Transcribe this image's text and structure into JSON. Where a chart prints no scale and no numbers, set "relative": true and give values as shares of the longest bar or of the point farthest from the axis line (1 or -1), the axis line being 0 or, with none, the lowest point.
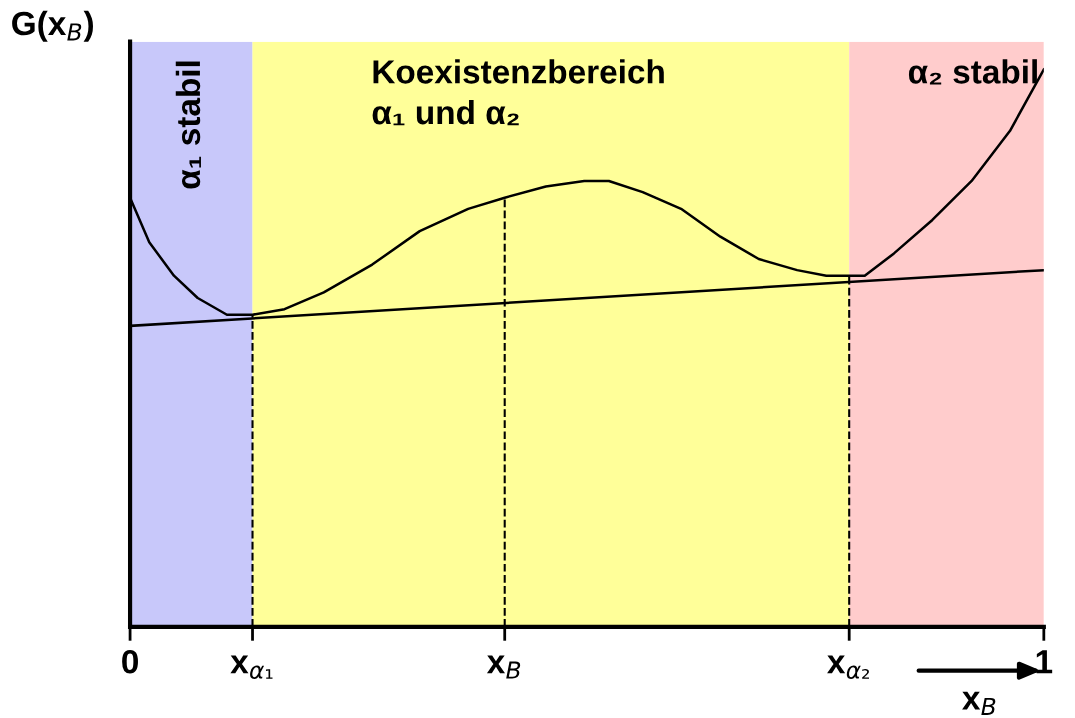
{
  "chart_data": {
    "type": "line",
    "relative": true,
    "ylabel": "G(x$_{B}$)",
    "xlabel": "x$_{B}$",
    "xlim": [
      0,
      1
    ],
    "xticks": [
      0,
      {
        "value": 0.134,
        "label": "x$_{α₁}$"
      },
      {
        "value": 0.41,
        "label": "x$_{B}$"
      },
      {
        "value": 0.787,
        "label": "x$_{α₂}$"
      },
      1
    ],
    "series": [
      {
        "color": "#000000",
        "x": [
          0,
          0.021,
          0.048,
          0.074,
          0.106,
          0.134,
          0.169,
          0.212,
          0.265,
          0.317,
          0.37,
          0.41,
          0.455,
          0.497,
          0.524,
          0.561,
          0.603,
          0.646,
          0.688,
          0.73,
          0.762,
          0.787,
          0.804,
          0.836,
          0.878,
          0.921,
          0.963,
          1
        ],
        "values": [
          0.77,
          0.69,
          0.63,
          0.59,
          0.56,
          0.56,
          0.57,
          0.6,
          0.65,
          0.71,
          0.75,
          0.77,
          0.79,
          0.8,
          0.8,
          0.78,
          0.75,
          0.7,
          0.66,
          0.64,
          0.63,
          0.63,
          0.63,
          0.67,
          0.73,
          0.8,
          0.89,
          1
        ]
      },
      {
        "color": "#000000",
        "x": [
          0,
          1
        ],
        "values": [
          0.54,
          0.64
        ]
      }
    ],
    "bands": [
      {
        "axis": "x",
        "from": 0,
        "to": 0.134,
        "label": "α₁ stabil",
        "color": "#c8c8fa"
      },
      {
        "axis": "x",
        "from": 0.134,
        "to": 0.787,
        "label": "Koexistenzbereich\nα₁ und α₂",
        "color": "#ffff99"
      },
      {
        "axis": "x",
        "from": 0.787,
        "to": 1,
        "label": "α₂ stabil",
        "color": "#ffcccc"
      }
    ],
    "ref_lines": [
      {
        "axis": "x",
        "value": 0.134,
        "line_style": "dashed"
      },
      {
        "axis": "x",
        "value": 0.41,
        "line_style": "dashed"
      },
      {
        "axis": "x",
        "value": 0.787,
        "line_style": "dashed"
      }
    ],
    "grid": false,
    "legend": false
  }
}
